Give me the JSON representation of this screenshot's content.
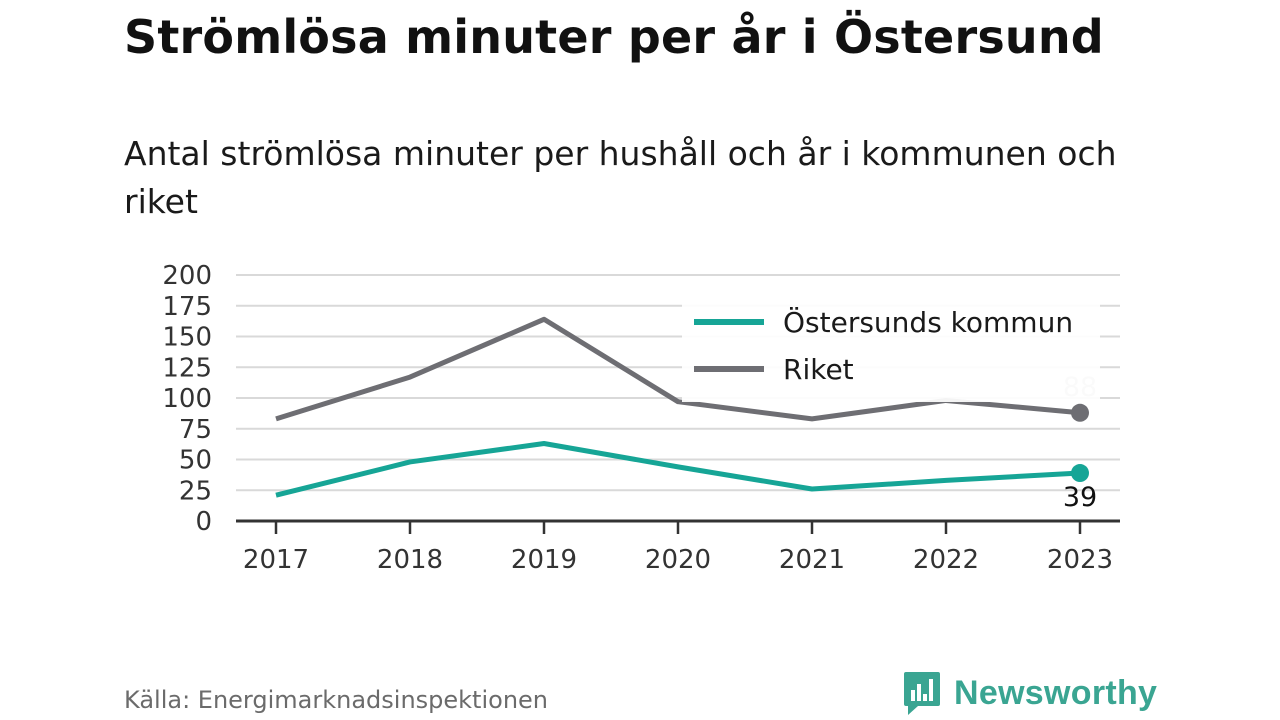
{
  "header": {
    "title": "Strömlösa minuter per år i Östersund",
    "subtitle": "Antal strömlösa minuter per hushåll och år i kommunen och riket"
  },
  "footer": {
    "source": "Källa: Energimarknadsinspektionen",
    "brand": "Newsworthy"
  },
  "colors": {
    "ostersund": "#16a596",
    "riket": "#6e6e73",
    "grid": "#d9d9d9",
    "axis": "#333333",
    "brand": "#3aa592"
  },
  "chart_data": {
    "type": "line",
    "title": "Strömlösa minuter per år i Östersund",
    "subtitle": "Antal strömlösa minuter per hushåll och år i kommunen och riket",
    "xlabel": "",
    "ylabel": "",
    "categories": [
      "2017",
      "2018",
      "2019",
      "2020",
      "2021",
      "2022",
      "2023"
    ],
    "ylim": [
      0,
      200
    ],
    "yticks": [
      0,
      25,
      50,
      75,
      100,
      125,
      150,
      175,
      200
    ],
    "grid": true,
    "legend_position": "top-right",
    "series": [
      {
        "name": "Östersunds kommun",
        "values": [
          21,
          48,
          63,
          44,
          26,
          33,
          39
        ],
        "end_label": "39"
      },
      {
        "name": "Riket",
        "values": [
          83,
          117,
          164,
          97,
          83,
          98,
          88
        ],
        "end_label": "88"
      }
    ]
  }
}
